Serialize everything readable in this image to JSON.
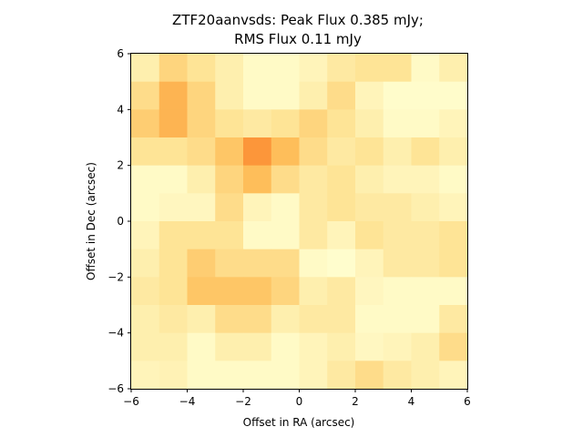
{
  "chart_data": {
    "type": "heatmap",
    "title_line1": "ZTF20aanvsds: Peak Flux 0.385 mJy;",
    "title_line2": "RMS Flux 0.11 mJy",
    "xlabel": "Offset in RA (arcsec)",
    "ylabel": "Offset in Dec (arcsec)",
    "xlim": [
      -6,
      6
    ],
    "ylim": [
      -6,
      6
    ],
    "x_ticks": [
      "−6",
      "−4",
      "−2",
      "0",
      "2",
      "4",
      "6"
    ],
    "y_ticks": [
      "−6",
      "−4",
      "−2",
      "0",
      "2",
      "4",
      "6"
    ],
    "colormap": "YlOrBr-like",
    "grid": false,
    "pixel_size_arcsec": 1,
    "rows_top_to_bottom": [
      [
        0.15,
        0.35,
        0.25,
        0.15,
        0.05,
        0.05,
        0.1,
        0.2,
        0.25,
        0.25,
        0.05,
        0.15
      ],
      [
        0.3,
        0.55,
        0.35,
        0.15,
        0.05,
        0.05,
        0.15,
        0.3,
        0.1,
        0.03,
        0.03,
        0.03
      ],
      [
        0.4,
        0.55,
        0.35,
        0.25,
        0.2,
        0.25,
        0.35,
        0.25,
        0.15,
        0.05,
        0.05,
        0.1
      ],
      [
        0.25,
        0.25,
        0.3,
        0.45,
        0.7,
        0.5,
        0.3,
        0.2,
        0.25,
        0.15,
        0.25,
        0.15
      ],
      [
        0.05,
        0.05,
        0.15,
        0.35,
        0.5,
        0.3,
        0.2,
        0.25,
        0.15,
        0.1,
        0.1,
        0.05
      ],
      [
        0.05,
        0.08,
        0.08,
        0.3,
        0.1,
        0.05,
        0.2,
        0.25,
        0.2,
        0.2,
        0.15,
        0.1
      ],
      [
        0.1,
        0.25,
        0.25,
        0.25,
        0.05,
        0.05,
        0.2,
        0.1,
        0.25,
        0.2,
        0.2,
        0.25
      ],
      [
        0.15,
        0.25,
        0.4,
        0.3,
        0.3,
        0.3,
        0.05,
        0.02,
        0.1,
        0.2,
        0.2,
        0.25
      ],
      [
        0.2,
        0.25,
        0.45,
        0.45,
        0.45,
        0.35,
        0.15,
        0.2,
        0.08,
        0.05,
        0.05,
        0.05
      ],
      [
        0.15,
        0.2,
        0.15,
        0.3,
        0.3,
        0.15,
        0.2,
        0.2,
        0.05,
        0.05,
        0.05,
        0.2
      ],
      [
        0.15,
        0.15,
        0.05,
        0.15,
        0.15,
        0.05,
        0.1,
        0.15,
        0.07,
        0.1,
        0.15,
        0.3
      ],
      [
        0.1,
        0.12,
        0.05,
        0.05,
        0.05,
        0.05,
        0.1,
        0.2,
        0.3,
        0.2,
        0.15,
        0.1
      ]
    ]
  }
}
